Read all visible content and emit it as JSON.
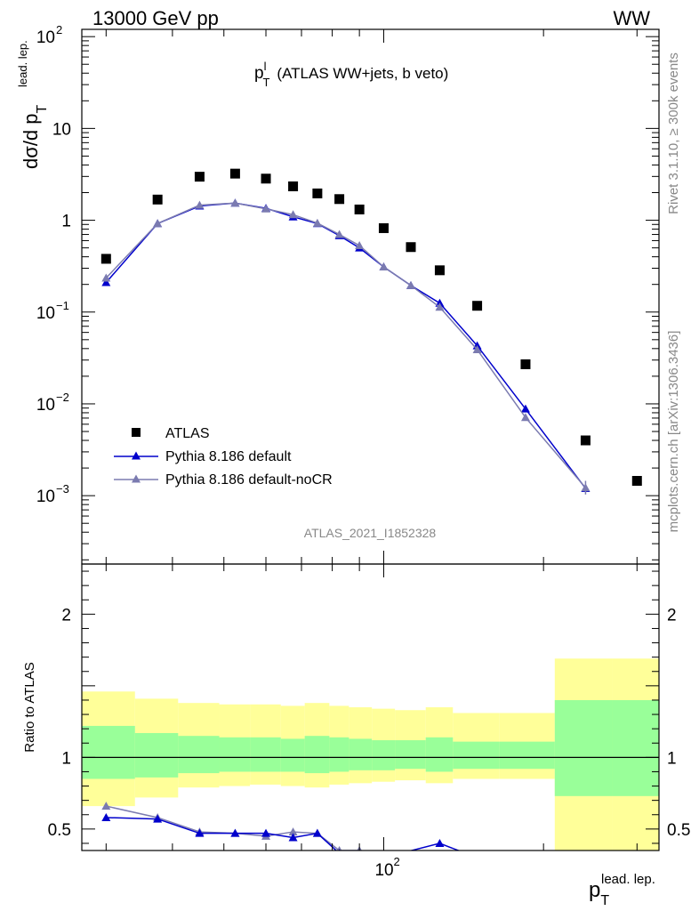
{
  "header": {
    "energy_label": "13000 GeV pp",
    "process_label": "WW",
    "watermark": "ATLAS_2021_I1852328",
    "side_label_top": "Rivet 3.1.10, ≥ 300k events",
    "side_label_bottom": "mcplots.cern.ch [arXiv:1306.3436]"
  },
  "chart_data": [
    {
      "type": "scatter",
      "title_main": "p",
      "title_sup": "l",
      "title_sub": "T",
      "title_rest": "(ATLAS WW+jets, b veto)",
      "ylabel_main": "dσ/d p",
      "ylabel_sub": "T",
      "ylabel_sup": "lead. lep.",
      "xlabel_main": "p",
      "xlabel_sub": "T",
      "xlabel_sup": "lead. lep.",
      "xscale": "log",
      "yscale": "log",
      "xlim": [
        27,
        330
      ],
      "ylim": [
        0.00018,
        120
      ],
      "x_tick_label": "10",
      "x_tick_exp": "2",
      "y_ticks": [
        {
          "value": 100,
          "base": "10",
          "exp": "2"
        },
        {
          "value": 10,
          "base": "10",
          "exp": ""
        },
        {
          "value": 1,
          "base": "1",
          "exp": ""
        },
        {
          "value": 0.1,
          "base": "10",
          "exp": "−1"
        },
        {
          "value": 0.01,
          "base": "10",
          "exp": "−2"
        },
        {
          "value": 0.001,
          "base": "10",
          "exp": "−3"
        }
      ],
      "legend_position": "lower-left",
      "series": [
        {
          "name": "ATLAS",
          "marker": "square",
          "color": "#000000",
          "x": [
            30,
            37.5,
            45,
            52.5,
            60,
            67.5,
            75,
            82.5,
            90,
            100,
            112.5,
            127.5,
            150,
            185,
            240,
            300
          ],
          "y": [
            0.38,
            1.68,
            2.98,
            3.22,
            2.84,
            2.34,
            1.96,
            1.7,
            1.31,
            0.82,
            0.51,
            0.285,
            0.117,
            0.027,
            0.004,
            0.00145
          ]
        },
        {
          "name": "Pythia 8.186 default",
          "marker": "triangle",
          "color": "#0000cc",
          "x": [
            30,
            37.5,
            45,
            52.5,
            60,
            67.5,
            75,
            82.5,
            90,
            100,
            112.5,
            127.5,
            150,
            185,
            240
          ],
          "y": [
            0.21,
            0.92,
            1.43,
            1.54,
            1.35,
            1.09,
            0.92,
            0.68,
            0.5,
            0.31,
            0.195,
            0.125,
            0.043,
            0.0088,
            0.0012
          ]
        },
        {
          "name": "Pythia 8.186 default-noCR",
          "marker": "triangle",
          "color": "#7b7bb0",
          "x": [
            30,
            37.5,
            45,
            52.5,
            60,
            67.5,
            75,
            82.5,
            90,
            100,
            112.5,
            127.5,
            150,
            185,
            240
          ],
          "y": [
            0.235,
            0.92,
            1.46,
            1.54,
            1.33,
            1.15,
            0.93,
            0.7,
            0.53,
            0.31,
            0.195,
            0.113,
            0.039,
            0.0071,
            0.00122
          ]
        }
      ]
    },
    {
      "type": "scatter",
      "ylabel": "Ratio to ATLAS",
      "xscale": "log",
      "xlim": [
        27,
        330
      ],
      "ylim": [
        0.35,
        2.35
      ],
      "y_ticks": [
        0.5,
        1,
        2
      ],
      "reference_line": 1,
      "bands": [
        {
          "x_low": 27,
          "x_high": 34,
          "yellow": [
            0.66,
            1.46
          ],
          "green": [
            0.85,
            1.22
          ]
        },
        {
          "x_low": 34,
          "x_high": 41,
          "yellow": [
            0.72,
            1.41
          ],
          "green": [
            0.86,
            1.17
          ]
        },
        {
          "x_low": 41,
          "x_high": 49,
          "yellow": [
            0.79,
            1.38
          ],
          "green": [
            0.89,
            1.15
          ]
        },
        {
          "x_low": 49,
          "x_high": 56,
          "yellow": [
            0.8,
            1.37
          ],
          "green": [
            0.9,
            1.14
          ]
        },
        {
          "x_low": 56,
          "x_high": 64,
          "yellow": [
            0.81,
            1.37
          ],
          "green": [
            0.9,
            1.14
          ]
        },
        {
          "x_low": 64,
          "x_high": 71,
          "yellow": [
            0.8,
            1.36
          ],
          "green": [
            0.9,
            1.13
          ]
        },
        {
          "x_low": 71,
          "x_high": 79,
          "yellow": [
            0.79,
            1.38
          ],
          "green": [
            0.89,
            1.15
          ]
        },
        {
          "x_low": 79,
          "x_high": 86,
          "yellow": [
            0.81,
            1.36
          ],
          "green": [
            0.9,
            1.14
          ]
        },
        {
          "x_low": 86,
          "x_high": 95,
          "yellow": [
            0.82,
            1.35
          ],
          "green": [
            0.91,
            1.13
          ]
        },
        {
          "x_low": 95,
          "x_high": 105,
          "yellow": [
            0.83,
            1.34
          ],
          "green": [
            0.91,
            1.12
          ]
        },
        {
          "x_low": 105,
          "x_high": 120,
          "yellow": [
            0.84,
            1.33
          ],
          "green": [
            0.92,
            1.12
          ]
        },
        {
          "x_low": 120,
          "x_high": 135,
          "yellow": [
            0.82,
            1.35
          ],
          "green": [
            0.9,
            1.14
          ]
        },
        {
          "x_low": 135,
          "x_high": 165,
          "yellow": [
            0.85,
            1.31
          ],
          "green": [
            0.92,
            1.11
          ]
        },
        {
          "x_low": 165,
          "x_high": 210,
          "yellow": [
            0.85,
            1.31
          ],
          "green": [
            0.92,
            1.11
          ]
        },
        {
          "x_low": 210,
          "x_high": 270,
          "yellow": [
            0.3,
            1.69
          ],
          "green": [
            0.73,
            1.4
          ]
        },
        {
          "x_low": 270,
          "x_high": 330,
          "yellow": [
            0.3,
            1.69
          ],
          "green": [
            0.73,
            1.4
          ]
        }
      ],
      "series": [
        {
          "name": "Pythia 8.186 default",
          "color": "#0000cc",
          "x": [
            30,
            37.5,
            45,
            52.5,
            60,
            67.5,
            75,
            82.5,
            90,
            100,
            127.5,
            150
          ],
          "y": [
            0.58,
            0.57,
            0.47,
            0.47,
            0.47,
            0.44,
            0.47,
            0.33,
            0.32,
            0.3,
            0.4,
            0.3
          ]
        },
        {
          "name": "Pythia 8.186 default-noCR",
          "color": "#7b7bb0",
          "x": [
            30,
            37.5,
            45,
            52.5,
            60,
            67.5,
            75,
            82.5,
            90,
            100
          ],
          "y": [
            0.66,
            0.58,
            0.48,
            0.47,
            0.45,
            0.48,
            0.47,
            0.35,
            0.35,
            0.3
          ]
        }
      ]
    }
  ]
}
